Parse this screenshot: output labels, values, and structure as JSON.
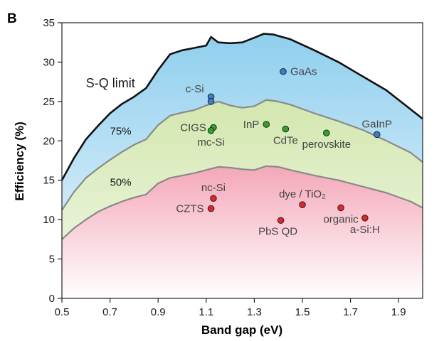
{
  "panel_label": "B",
  "chart_data": {
    "type": "scatter",
    "xlabel": "Band gap (eV)",
    "ylabel": "Efficiency (%)",
    "xlim": [
      0.5,
      2.0
    ],
    "ylim": [
      0,
      35
    ],
    "xticks": [
      0.5,
      0.7,
      0.9,
      1.1,
      1.3,
      1.5,
      1.7,
      1.9
    ],
    "yticks": [
      0,
      5,
      10,
      15,
      20,
      25,
      30,
      35
    ],
    "grid": false,
    "curves": [
      {
        "name": "S-Q limit",
        "color": "#111111",
        "fill_top": "#8fcfee",
        "fill_bottom": "#eef7fd",
        "x": [
          0.5,
          0.55,
          0.6,
          0.65,
          0.7,
          0.75,
          0.8,
          0.85,
          0.9,
          0.95,
          1.0,
          1.05,
          1.1,
          1.12,
          1.15,
          1.2,
          1.25,
          1.3,
          1.34,
          1.38,
          1.45,
          1.55,
          1.65,
          1.75,
          1.85,
          1.95,
          2.0
        ],
        "y": [
          15.0,
          17.8,
          20.2,
          21.9,
          23.5,
          24.7,
          25.6,
          26.7,
          29.0,
          31.0,
          31.5,
          31.8,
          32.1,
          33.2,
          32.5,
          32.4,
          32.5,
          33.1,
          33.6,
          33.5,
          32.9,
          31.5,
          30.0,
          28.2,
          26.4,
          24.0,
          22.8
        ]
      },
      {
        "name": "75%",
        "color": "#8a8a8a",
        "fill_top": "#d3e7ae",
        "fill_bottom": "#f1f8e9",
        "x": [
          0.5,
          0.55,
          0.6,
          0.65,
          0.7,
          0.75,
          0.8,
          0.85,
          0.9,
          0.95,
          1.0,
          1.05,
          1.1,
          1.15,
          1.2,
          1.25,
          1.3,
          1.35,
          1.4,
          1.45,
          1.55,
          1.65,
          1.75,
          1.85,
          1.95,
          2.0
        ],
        "y": [
          11.2,
          13.5,
          15.3,
          16.5,
          17.6,
          18.6,
          19.5,
          20.2,
          22.0,
          23.2,
          23.6,
          23.9,
          24.5,
          25.0,
          24.5,
          24.2,
          24.4,
          25.2,
          25.0,
          24.6,
          23.5,
          22.5,
          21.4,
          20.0,
          18.5,
          17.3
        ]
      },
      {
        "name": "50%",
        "color": "#8a8a8a",
        "fill_top": "#f4a7b8",
        "fill_bottom": "#ffffff",
        "x": [
          0.5,
          0.55,
          0.6,
          0.65,
          0.7,
          0.75,
          0.8,
          0.85,
          0.9,
          0.95,
          1.0,
          1.05,
          1.1,
          1.15,
          1.2,
          1.25,
          1.3,
          1.35,
          1.4,
          1.45,
          1.55,
          1.65,
          1.75,
          1.85,
          1.95,
          2.0
        ],
        "y": [
          7.5,
          8.9,
          10.0,
          11.0,
          11.7,
          12.3,
          12.8,
          13.2,
          14.6,
          15.3,
          15.6,
          15.9,
          16.3,
          16.7,
          16.6,
          16.4,
          16.3,
          16.8,
          16.7,
          16.3,
          15.6,
          15.0,
          14.2,
          13.4,
          12.3,
          11.5
        ]
      }
    ],
    "series": [
      {
        "name": "c-Si",
        "color": "#3c7ec5",
        "x": 1.12,
        "y": 25.6,
        "label_pos": "above-left"
      },
      {
        "name": "",
        "color": "#3c7ec5",
        "x": 1.12,
        "y": 25.0,
        "label_pos": "none"
      },
      {
        "name": "GaAs",
        "color": "#3c7ec5",
        "x": 1.42,
        "y": 28.8,
        "label_pos": "right"
      },
      {
        "name": "GaInP",
        "color": "#3c7ec5",
        "x": 1.81,
        "y": 20.8,
        "label_pos": "above"
      },
      {
        "name": "CIGS",
        "color": "#33a02c",
        "x": 1.13,
        "y": 21.7,
        "label_pos": "left"
      },
      {
        "name": "mc-Si",
        "color": "#33a02c",
        "x": 1.12,
        "y": 21.3,
        "label_pos": "below"
      },
      {
        "name": "InP",
        "color": "#33a02c",
        "x": 1.35,
        "y": 22.1,
        "label_pos": "left"
      },
      {
        "name": "CdTe",
        "color": "#33a02c",
        "x": 1.43,
        "y": 21.5,
        "label_pos": "below"
      },
      {
        "name": "perovskite",
        "color": "#33a02c",
        "x": 1.6,
        "y": 21.0,
        "label_pos": "below"
      },
      {
        "name": "nc-Si",
        "color": "#e0262b",
        "x": 1.13,
        "y": 12.7,
        "label_pos": "above"
      },
      {
        "name": "CZTS",
        "color": "#e0262b",
        "x": 1.12,
        "y": 11.4,
        "label_pos": "left"
      },
      {
        "name": "dye / TiO₂",
        "color": "#e0262b",
        "x": 1.5,
        "y": 11.9,
        "label_pos": "above"
      },
      {
        "name": "PbS QD",
        "color": "#e0262b",
        "x": 1.41,
        "y": 9.9,
        "label_pos": "below-left"
      },
      {
        "name": "organic",
        "color": "#e0262b",
        "x": 1.66,
        "y": 11.5,
        "label_pos": "below"
      },
      {
        "name": "a-Si:H",
        "color": "#e0262b",
        "x": 1.76,
        "y": 10.2,
        "label_pos": "below"
      }
    ]
  }
}
